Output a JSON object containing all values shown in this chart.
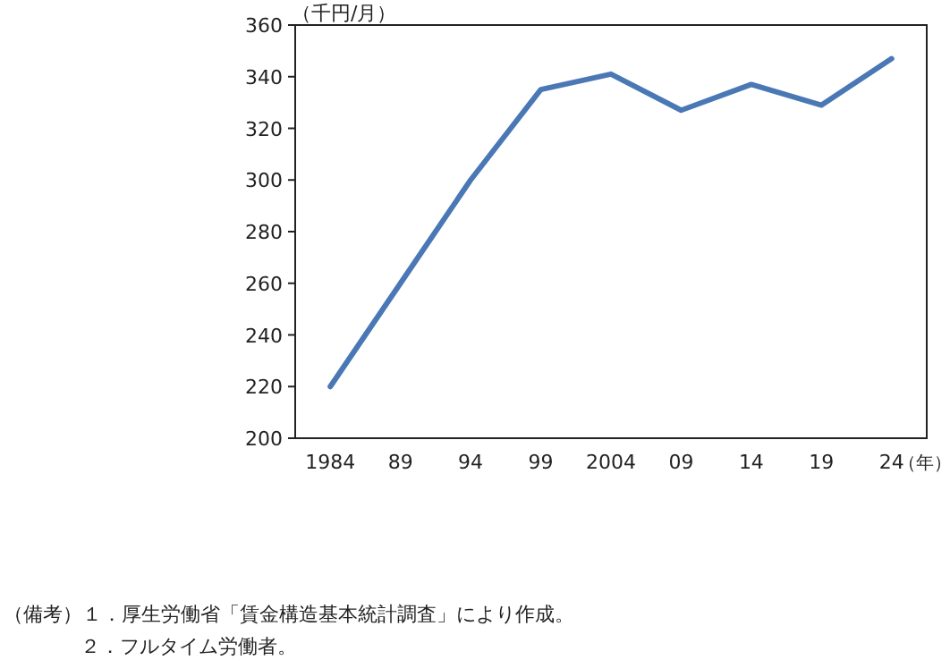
{
  "chart_data": {
    "type": "line",
    "ylabel": "（千円/月）",
    "xlabel": "（年）",
    "categories": [
      "1984",
      "89",
      "94",
      "99",
      "2004",
      "09",
      "14",
      "19",
      "24"
    ],
    "series": [
      {
        "color": "#4a78b5",
        "values": [
          220,
          260,
          300,
          335,
          341,
          327,
          337,
          329,
          347
        ]
      }
    ],
    "ylim": [
      200,
      360
    ],
    "yticks": [
      200,
      220,
      240,
      260,
      280,
      300,
      320,
      340,
      360
    ],
    "grid": false,
    "marker": "none",
    "line_style": "solid",
    "annotations": [
      "（備考）１．厚生労働省「賃金構造基本統計調査」により作成。",
      "２．フルタイム労働者。"
    ]
  }
}
